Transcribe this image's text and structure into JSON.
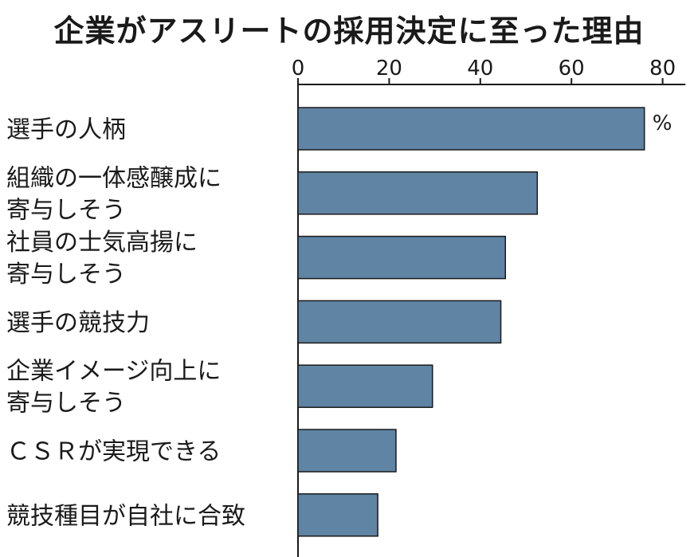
{
  "chart_data": {
    "type": "bar",
    "orientation": "horizontal",
    "title": "企業がアスリートの採用決定に至った理由",
    "unit": "%",
    "categories": [
      [
        "選手の人柄"
      ],
      [
        "組織の一体感醸成に",
        "寄与しそう"
      ],
      [
        "社員の士気高揚に",
        "寄与しそう"
      ],
      [
        "選手の競技力"
      ],
      [
        "企業イメージ向上に",
        "寄与しそう"
      ],
      [
        "ＣＳＲが実現できる"
      ],
      [
        "競技種目が自社に合致"
      ]
    ],
    "values": [
      76,
      52.5,
      45.5,
      44.5,
      29.5,
      21.5,
      17.5
    ],
    "xlim": [
      0,
      85
    ],
    "xticks": [
      0,
      20,
      40,
      60,
      80
    ],
    "xtick_labels": [
      "0",
      "20",
      "40",
      "60",
      "80"
    ],
    "tick_position": "top",
    "grid": false,
    "colors": {
      "bar": "#5f84a4",
      "bar_edge": "#1a1a1a",
      "axis": "#1a1a1a"
    }
  }
}
